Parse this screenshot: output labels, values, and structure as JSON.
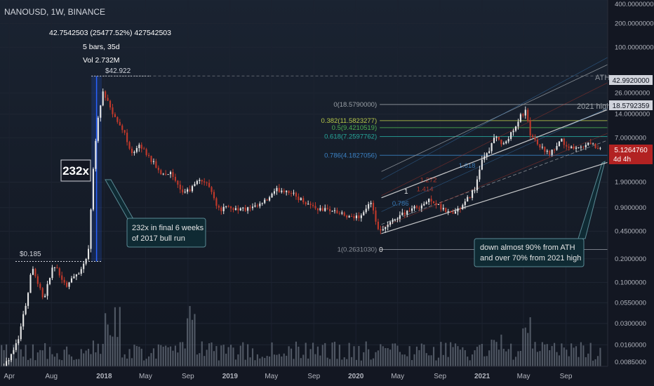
{
  "header": {
    "symbol": "NANOUSD, 1W, BINANCE",
    "measure_line": "42.7542503 (25477.52%) 427542503",
    "bars_line": "5 bars, 35d",
    "vol_line": "Vol 2.732M"
  },
  "colors": {
    "background_top": "#1a2331",
    "background_bottom": "#121722",
    "up_candle": "#e6e6e6",
    "down_candle": "#c0392b",
    "volume": "#6b7380",
    "measure_blue": "#2962ff",
    "price_tag": "#b22222",
    "annotation_bg": "#0f2a33",
    "annotation_border": "#5a8a95"
  },
  "annotations": {
    "low_label": "$0.185",
    "high_label": "$42.922",
    "gain_label": "232x",
    "gain_note_line1": "232x in final 6 weeks",
    "gain_note_line2": "of 2017 bull run",
    "ath_label": "ATH",
    "high_2021_label": "2021 high",
    "down_note_line1": "down almost 90% from ATH",
    "down_note_line2": "and over 70% from 2021 high",
    "channel_point_1": "1",
    "channel_point_0": "0"
  },
  "fib_levels": [
    {
      "label": "0(18.5790000)",
      "color": "#9aa0a6"
    },
    {
      "label": "0.382(11.5823277)",
      "color": "#b6c84a"
    },
    {
      "label": "0.5(9.4210519)",
      "color": "#4caf50"
    },
    {
      "label": "0.618(7.2597762)",
      "color": "#26a69a"
    },
    {
      "label": "0.786(4.1827056)",
      "color": "#3b82c4"
    },
    {
      "label": "1(0.2631030)",
      "color": "#8a8f98"
    }
  ],
  "fib_extensions": [
    {
      "label": "1.618",
      "color": "#3b82c4"
    },
    {
      "label": "1.272",
      "color": "#c0392b"
    },
    {
      "label": "1.414",
      "color": "#c0392b"
    },
    {
      "label": "0.786",
      "color": "#3b82c4"
    }
  ],
  "price_axis": {
    "ath_value": "42.9920000",
    "high_2021_value": "18.5792359",
    "current_value": "5.1264760",
    "countdown": "4d 4h"
  },
  "chart_data": {
    "type": "candlestick",
    "y_scale": "log",
    "ylim": [
      0.0085,
      400
    ],
    "y_ticks": [
      {
        "v": 400,
        "label": "400.0000000"
      },
      {
        "v": 200,
        "label": "200.0000000"
      },
      {
        "v": 100,
        "label": "100.0000000"
      },
      {
        "v": 26,
        "label": "26.0000000"
      },
      {
        "v": 14,
        "label": "14.0000000"
      },
      {
        "v": 7,
        "label": "7.0000000"
      },
      {
        "v": 1.9,
        "label": "1.9000000"
      },
      {
        "v": 0.9,
        "label": "0.9000000"
      },
      {
        "v": 0.45,
        "label": "0.4500000"
      },
      {
        "v": 0.2,
        "label": "0.2000000"
      },
      {
        "v": 0.1,
        "label": "0.1000000"
      },
      {
        "v": 0.055,
        "label": "0.0550000"
      },
      {
        "v": 0.03,
        "label": "0.0300000"
      },
      {
        "v": 0.016,
        "label": "0.0160000"
      },
      {
        "v": 0.0085,
        "label": "0.0085000"
      }
    ],
    "x_ticks": [
      "Apr",
      "Aug",
      "2018",
      "May",
      "Sep",
      "2019",
      "May",
      "Sep",
      "2020",
      "May",
      "Sep",
      "2021",
      "May",
      "Sep"
    ],
    "x_tick_dates": [
      "2017-04-01",
      "2017-08-01",
      "2018-01-01",
      "2018-05-01",
      "2018-09-01",
      "2019-01-01",
      "2019-05-01",
      "2019-09-01",
      "2020-01-01",
      "2020-05-01",
      "2020-09-01",
      "2021-01-01",
      "2021-05-01",
      "2021-09-01"
    ],
    "x_range": [
      "2017-03-05",
      "2021-12-31"
    ],
    "price_path": [
      [
        "2017-03-10",
        0.008
      ],
      [
        "2017-04-05",
        0.011
      ],
      [
        "2017-05-01",
        0.02
      ],
      [
        "2017-05-25",
        0.06
      ],
      [
        "2017-06-10",
        0.17
      ],
      [
        "2017-06-25",
        0.1
      ],
      [
        "2017-07-15",
        0.06
      ],
      [
        "2017-08-05",
        0.15
      ],
      [
        "2017-08-25",
        0.14
      ],
      [
        "2017-09-15",
        0.09
      ],
      [
        "2017-10-10",
        0.12
      ],
      [
        "2017-11-01",
        0.15
      ],
      [
        "2017-11-20",
        0.26
      ],
      [
        "2017-12-05",
        3.5
      ],
      [
        "2017-12-15",
        10.5
      ],
      [
        "2018-01-01",
        27
      ],
      [
        "2018-01-20",
        18
      ],
      [
        "2018-02-10",
        11
      ],
      [
        "2018-03-05",
        8
      ],
      [
        "2018-03-25",
        4.5
      ],
      [
        "2018-04-20",
        5.5
      ],
      [
        "2018-05-15",
        4
      ],
      [
        "2018-06-15",
        2.5
      ],
      [
        "2018-07-15",
        2.5
      ],
      [
        "2018-08-15",
        1.4
      ],
      [
        "2018-09-10",
        1.5
      ],
      [
        "2018-10-10",
        2.1
      ],
      [
        "2018-11-10",
        1.6
      ],
      [
        "2018-12-01",
        0.85
      ],
      [
        "2019-01-01",
        0.9
      ],
      [
        "2019-02-15",
        0.85
      ],
      [
        "2019-03-20",
        0.9
      ],
      [
        "2019-04-20",
        1.1
      ],
      [
        "2019-05-20",
        1.5
      ],
      [
        "2019-06-20",
        1.5
      ],
      [
        "2019-07-20",
        1.2
      ],
      [
        "2019-08-20",
        1.0
      ],
      [
        "2019-09-20",
        0.85
      ],
      [
        "2019-10-20",
        0.85
      ],
      [
        "2019-11-20",
        0.75
      ],
      [
        "2019-12-20",
        0.65
      ],
      [
        "2020-01-20",
        0.72
      ],
      [
        "2020-02-15",
        1.05
      ],
      [
        "2020-03-13",
        0.42
      ],
      [
        "2020-04-10",
        0.55
      ],
      [
        "2020-05-10",
        0.72
      ],
      [
        "2020-06-10",
        0.85
      ],
      [
        "2020-07-10",
        0.95
      ],
      [
        "2020-08-10",
        1.15
      ],
      [
        "2020-09-10",
        0.85
      ],
      [
        "2020-10-10",
        0.75
      ],
      [
        "2020-11-10",
        0.95
      ],
      [
        "2020-12-15",
        1.6
      ],
      [
        "2021-01-05",
        3.6
      ],
      [
        "2021-01-20",
        4.5
      ],
      [
        "2021-02-10",
        7.0
      ],
      [
        "2021-03-10",
        5.8
      ],
      [
        "2021-04-10",
        9.5
      ],
      [
        "2021-04-25",
        13.0
      ],
      [
        "2021-05-10",
        15.0
      ],
      [
        "2021-05-25",
        7.5
      ],
      [
        "2021-06-20",
        5.5
      ],
      [
        "2021-07-20",
        4.3
      ],
      [
        "2021-08-20",
        6.5
      ],
      [
        "2021-09-20",
        5.2
      ],
      [
        "2021-10-20",
        5.6
      ],
      [
        "2021-11-20",
        5.7
      ],
      [
        "2021-12-10",
        5.13
      ]
    ]
  }
}
